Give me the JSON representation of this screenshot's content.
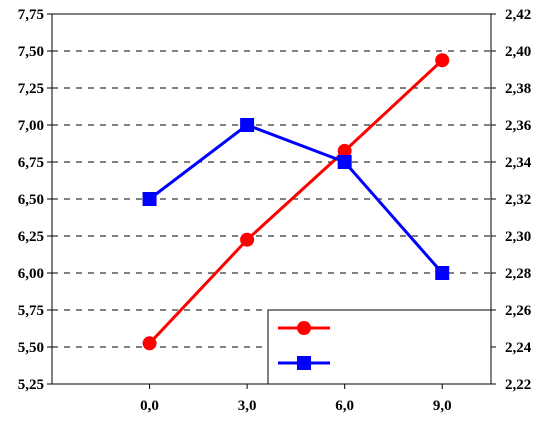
{
  "chart_data": {
    "type": "line",
    "x": [
      0,
      3,
      6,
      9
    ],
    "x_tick_labels": [
      "0,0",
      "3,0",
      "6,0",
      "9,0"
    ],
    "xlim": [
      -3,
      10.5
    ],
    "left_axis": {
      "ylim": [
        5.25,
        7.75
      ],
      "ticks": [
        5.25,
        5.5,
        5.75,
        6.0,
        6.25,
        6.5,
        6.75,
        7.0,
        7.25,
        7.5,
        7.75
      ],
      "tick_labels": [
        "5,25",
        "5,50",
        "5,75",
        "6,00",
        "6,25",
        "6,50",
        "6,75",
        "7,00",
        "7,25",
        "7,50",
        "7,75"
      ]
    },
    "right_axis": {
      "ylim": [
        2.22,
        2.42
      ],
      "ticks": [
        2.22,
        2.24,
        2.26,
        2.28,
        2.3,
        2.32,
        2.34,
        2.36,
        2.38,
        2.4,
        2.42
      ],
      "tick_labels": [
        "2,22",
        "2,24",
        "2,26",
        "2,28",
        "2,30",
        "2,32",
        "2,34",
        "2,36",
        "2,38",
        "2,40",
        "2,42"
      ]
    },
    "series": [
      {
        "axis": "right",
        "color": "#ff0000",
        "marker": "circle",
        "values": [
          2.242,
          2.298,
          2.346,
          2.395
        ]
      },
      {
        "axis": "left",
        "color": "#0000ff",
        "marker": "square",
        "values": [
          6.5,
          7.0,
          6.75,
          6.0
        ]
      }
    ],
    "grid": {
      "horizontal": true,
      "style": "dashed"
    },
    "legend": {
      "position": "bottom-right",
      "entries": 2,
      "show_names": false
    }
  }
}
